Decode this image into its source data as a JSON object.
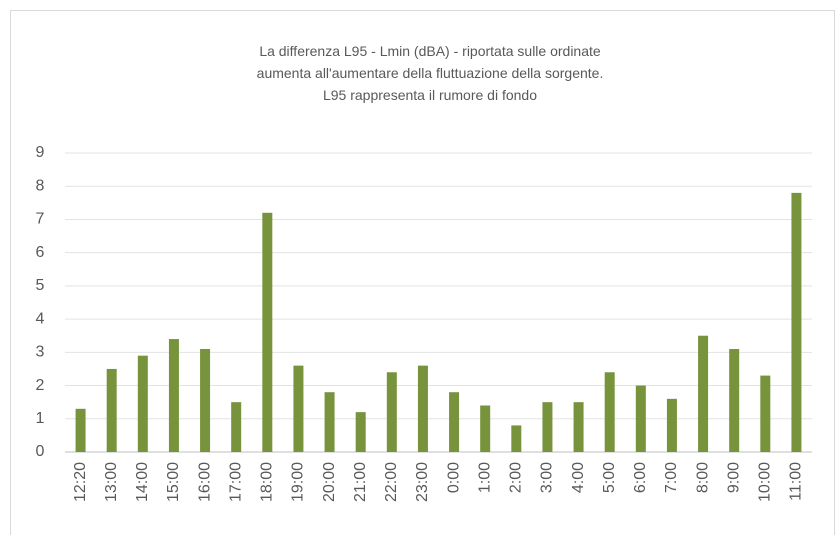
{
  "chart_data": {
    "type": "bar",
    "title": [
      "La differenza L95 - Lmin  (dBA) - riportata sulle ordinate",
      "aumenta all'aumentare della fluttuazione della sorgente.",
      "L95 rappresenta il rumore di fondo"
    ],
    "categories": [
      "12:20",
      "13:00",
      "14:00",
      "15:00",
      "16:00",
      "17:00",
      "18:00",
      "19:00",
      "20:00",
      "21:00",
      "22:00",
      "23:00",
      "0:00",
      "1:00",
      "2:00",
      "3:00",
      "4:00",
      "5:00",
      "6:00",
      "7:00",
      "8:00",
      "9:00",
      "10:00",
      "11:00"
    ],
    "values": [
      1.3,
      2.5,
      2.9,
      3.4,
      3.1,
      1.5,
      7.2,
      2.6,
      1.8,
      1.2,
      2.4,
      2.6,
      1.8,
      1.4,
      0.8,
      1.5,
      1.5,
      2.4,
      2.0,
      1.6,
      3.5,
      3.1,
      2.3,
      7.8
    ],
    "color": "#77933c",
    "ylim": [
      0,
      9
    ],
    "yticks": [
      0,
      1,
      2,
      3,
      4,
      5,
      6,
      7,
      8,
      9
    ],
    "grid": true
  }
}
